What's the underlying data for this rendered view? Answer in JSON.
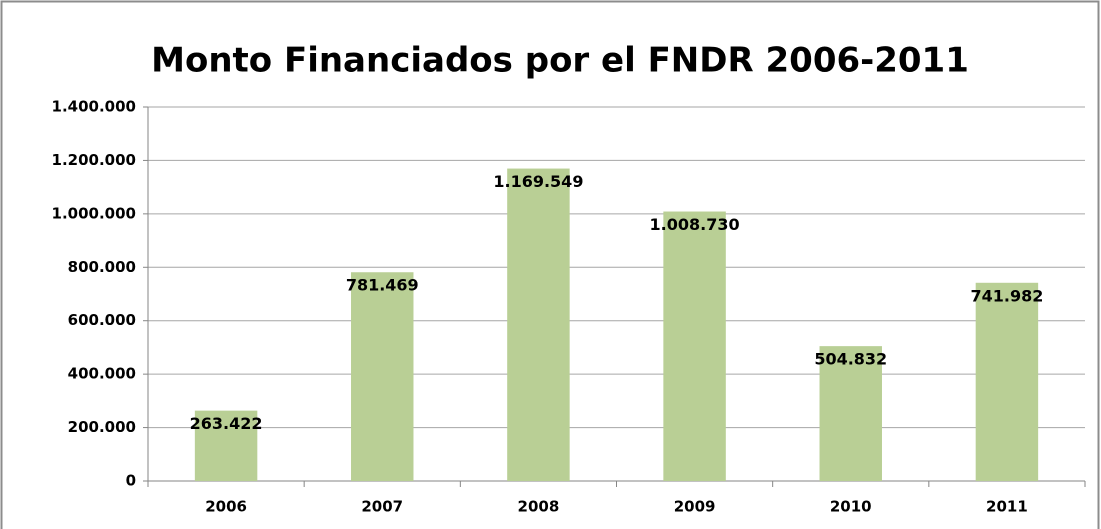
{
  "chart_data": {
    "type": "bar",
    "title": "Monto Financiados por el FNDR 2006-2011",
    "categories": [
      "2006",
      "2007",
      "2008",
      "2009",
      "2010",
      "2011"
    ],
    "values": [
      263422,
      781469,
      1169549,
      1008730,
      504832,
      741982
    ],
    "value_labels": [
      "263.422",
      "781.469",
      "1.169.549",
      "1.008.730",
      "504.832",
      "741.982"
    ],
    "color": "#b9cf95",
    "ylim": [
      0,
      1400000
    ],
    "yticks": [
      0,
      {
        "value": 200000,
        "label": "200.000"
      },
      {
        "value": 400000,
        "label": "400.000"
      },
      {
        "value": 600000,
        "label": "600.000"
      },
      {
        "value": 800000,
        "label": "800.000"
      },
      {
        "value": 1000000,
        "label": "1.000.000"
      },
      {
        "value": 1200000,
        "label": "1.200.000"
      },
      {
        "value": 1400000,
        "label": "1.400.000"
      }
    ],
    "grid": true
  }
}
